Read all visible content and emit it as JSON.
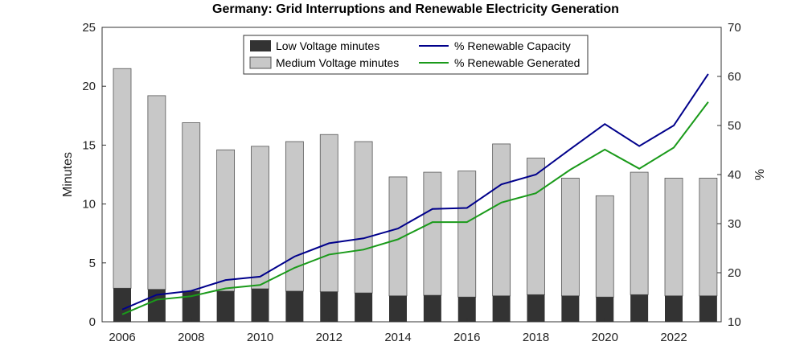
{
  "chart_data": {
    "type": "bar",
    "title": "Germany: Grid Interruptions and Renewable Electricity Generation",
    "ylabel": "Minutes",
    "y2label": "%",
    "ylim": [
      0,
      25
    ],
    "y2lim": [
      10,
      70
    ],
    "yticks": [
      "0",
      "5",
      "10",
      "15",
      "20",
      "25"
    ],
    "y2ticks": [
      "10",
      "20",
      "30",
      "40",
      "50",
      "60",
      "70"
    ],
    "xticks": [
      "2006",
      "2008",
      "2010",
      "2012",
      "2014",
      "2016",
      "2018",
      "2020",
      "2022"
    ],
    "categories": [
      2006,
      2007,
      2008,
      2009,
      2010,
      2011,
      2012,
      2013,
      2014,
      2015,
      2016,
      2017,
      2018,
      2019,
      2020,
      2021,
      2022,
      2023
    ],
    "series": [
      {
        "name": "Low Voltage minutes",
        "kind": "bar",
        "color": "#333333",
        "values": [
          2.85,
          2.75,
          2.6,
          2.6,
          2.8,
          2.6,
          2.55,
          2.45,
          2.2,
          2.25,
          2.1,
          2.2,
          2.3,
          2.2,
          2.1,
          2.3,
          2.2,
          2.2
        ]
      },
      {
        "name": "Medium Voltage minutes",
        "kind": "bar",
        "color": "#c8c8c8",
        "values": [
          18.65,
          16.45,
          14.3,
          12.0,
          12.1,
          12.7,
          13.35,
          12.85,
          10.1,
          10.45,
          10.7,
          12.9,
          11.6,
          10.0,
          8.6,
          10.4,
          10.0,
          10.0
        ]
      },
      {
        "name": "% Renewable Capacity",
        "kind": "line",
        "axis": "right",
        "color": "#00008b",
        "values": [
          12.5,
          15.5,
          16.3,
          18.5,
          19.2,
          23.3,
          26,
          27,
          29,
          33,
          33.2,
          38,
          40,
          45.2,
          50.3,
          45.8,
          50,
          60.5
        ]
      },
      {
        "name": "% Renewable Generated",
        "kind": "line",
        "axis": "right",
        "color": "#1a9a1a",
        "values": [
          11.5,
          14.5,
          15.2,
          16.8,
          17.5,
          21,
          23.7,
          24.7,
          26.8,
          30.3,
          30.3,
          34.3,
          36.2,
          41,
          45.1,
          41.2,
          45.5,
          54.8
        ]
      }
    ],
    "legend": "top-center",
    "grid": false
  }
}
